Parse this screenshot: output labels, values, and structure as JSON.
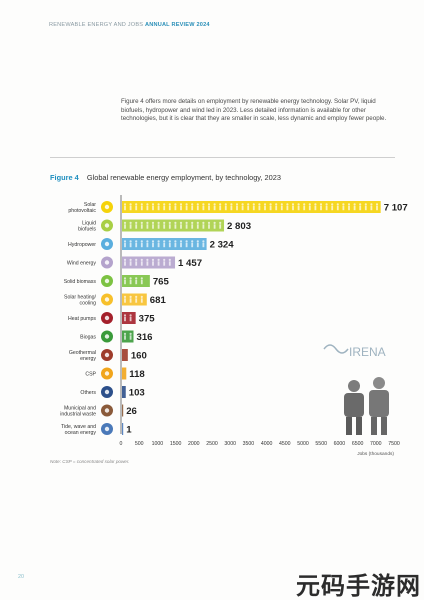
{
  "header": {
    "prefix": "RENEWABLE ENERGY AND JOBS",
    "accent": "ANNUAL REVIEW 2024"
  },
  "intro_text": "Figure 4 offers more details on employment by renewable energy technology. Solar PV, liquid biofuels, hydropower and wind led in 2023. Less detailed information is available for other technologies, but it is clear that they are smaller in scale, less dynamic and employ fewer people.",
  "figure": {
    "label": "Figure 4",
    "title": "Global renewable energy employment, by technology, 2023"
  },
  "chart_data": {
    "type": "bar",
    "orientation": "horizontal",
    "categories": [
      "Solar photovoltaic",
      "Liquid biofuels",
      "Hydropower",
      "Wind energy",
      "Solid biomass",
      "Solar heating/ cooling",
      "Heat pumps",
      "Biogas",
      "Geothermal energy",
      "CSP",
      "Others",
      "Municipal and industrial waste",
      "Tide, wave and ocean energy"
    ],
    "values": [
      7107,
      2803,
      2324,
      1457,
      765,
      681,
      375,
      316,
      160,
      118,
      103,
      26,
      1
    ],
    "value_labels": [
      "7 107",
      "2 803",
      "2 324",
      "1 457",
      "765",
      "681",
      "375",
      "316",
      "160",
      "118",
      "103",
      "26",
      "1"
    ],
    "colors": [
      "#f5d30a",
      "#a8cf45",
      "#5aaede",
      "#b4a3cc",
      "#7cc242",
      "#f7c02b",
      "#a4202b",
      "#3a9a3a",
      "#9e3b2a",
      "#f1a51c",
      "#2c4f8a",
      "#8a5a3a",
      "#4a79b9"
    ],
    "icon_names": [
      "sun-icon",
      "drop-icon",
      "water-drop-icon",
      "wind-turbine-icon",
      "leaf-icon",
      "sun-icon",
      "heat-pump-icon",
      "biogas-icon",
      "geothermal-icon",
      "csp-icon",
      "others-icon",
      "waste-icon",
      "wave-icon"
    ],
    "xticks": [
      "0",
      "500",
      "1000",
      "1500",
      "2000",
      "2500",
      "3000",
      "3500",
      "4000",
      "4500",
      "5000",
      "5500",
      "6000",
      "6500",
      "7000",
      "7500"
    ],
    "xlim": [
      0,
      7500
    ],
    "xlabel": "Jobs (thousands)",
    "grid": false
  },
  "logo_text": "IRENA",
  "note": "Note: CSP = concentrated solar power.",
  "page_number": "20",
  "watermark": "元码手游网"
}
